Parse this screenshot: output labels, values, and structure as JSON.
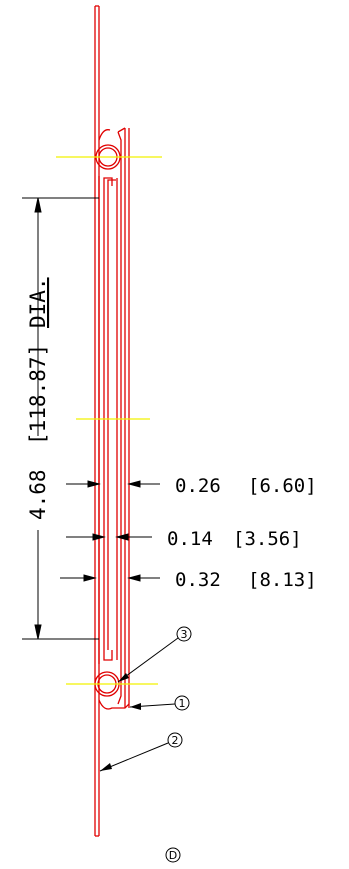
{
  "dimensions": {
    "diameter": {
      "value": "4.68",
      "bracket": "[118.87]",
      "suffix": "DIA."
    },
    "d1": {
      "value": "0.26",
      "bracket": "[6.60]"
    },
    "d2": {
      "value": "0.14",
      "bracket": "[3.56]"
    },
    "d3": {
      "value": "0.32",
      "bracket": "[8.13]"
    }
  },
  "balloons": {
    "b1": "1",
    "b2": "2",
    "b3": "3"
  },
  "view_label": "D",
  "colors": {
    "part": "#e00000",
    "centerline": "#f2f200",
    "dimension": "#000000"
  }
}
